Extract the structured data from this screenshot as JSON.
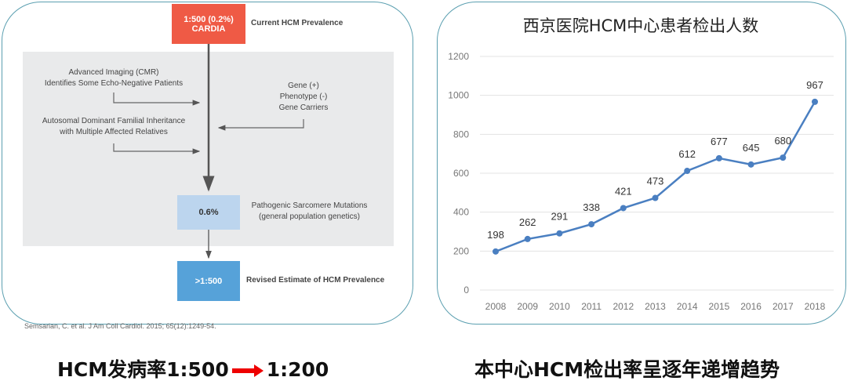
{
  "diagram": {
    "top_box": {
      "line1": "1:500 (0.2%)",
      "line2": "CARDIA"
    },
    "top_label": "Current HCM Prevalence",
    "imaging": {
      "line1": "Advanced Imaging (CMR)",
      "line2": "Identifies Some Echo-Negative Patients"
    },
    "gene": {
      "line1": "Gene (+)",
      "line2": "Phenotype (-)",
      "line3": "Gene Carriers"
    },
    "familial": {
      "line1": "Autosomal Dominant Familial Inheritance",
      "line2": "with Multiple Affected Relatives"
    },
    "mid_box": "0.6%",
    "mid_label": {
      "line1": "Pathogenic Sarcomere Mutations",
      "line2": "(general population genetics)"
    },
    "bottom_box": ">1:500",
    "bottom_label": "Revised Estimate of HCM Prevalence",
    "citation": "Semsarian, C. et al. J Am Coll Cardiol. 2015; 65(12):1249-54.",
    "colors": {
      "red": "#ef5a45",
      "light_blue": "#bcd5ee",
      "blue": "#56a2d9",
      "gray": "#e9eaeb"
    }
  },
  "captions": {
    "left_a": "HCM发病率1:500",
    "left_b": "1:200",
    "right": "本中心HCM检出率呈逐年递增趋势"
  },
  "chart_data": {
    "type": "line",
    "title": "西京医院HCM中心患者检出人数",
    "categories": [
      "2008",
      "2009",
      "2010",
      "2011",
      "2012",
      "2013",
      "2014",
      "2015",
      "2016",
      "2017",
      "2018"
    ],
    "values": [
      198,
      262,
      291,
      338,
      421,
      473,
      612,
      677,
      645,
      680,
      967
    ],
    "ylim": [
      0,
      1200
    ],
    "yticks": [
      0,
      200,
      400,
      600,
      800,
      1000,
      1200
    ],
    "grid": true,
    "color": "#4a7fc1"
  }
}
